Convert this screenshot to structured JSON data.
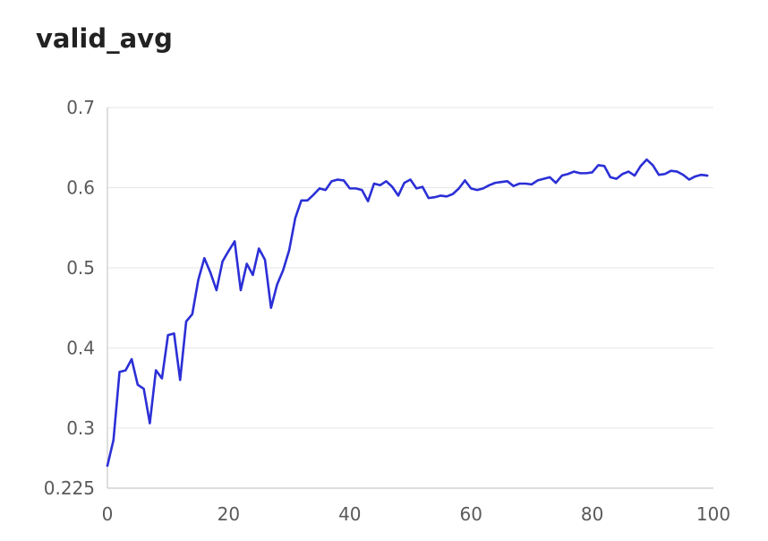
{
  "chart_data": {
    "type": "line",
    "title": "valid_avg",
    "xlabel": "",
    "ylabel": "",
    "xlim": [
      0,
      100
    ],
    "ylim": [
      0.225,
      0.7
    ],
    "x_ticks": [
      0,
      20,
      40,
      60,
      80,
      100
    ],
    "y_ticks": [
      0.225,
      0.3,
      0.4,
      0.5,
      0.6,
      0.7
    ],
    "grid": "horizontal",
    "legend": "none",
    "series": [
      {
        "color": "#2b2fd6",
        "x": [
          0,
          1,
          2,
          3,
          4,
          5,
          6,
          7,
          8,
          9,
          10,
          11,
          12,
          13,
          14,
          15,
          16,
          17,
          18,
          19,
          20,
          21,
          22,
          23,
          24,
          25,
          26,
          27,
          28,
          29,
          30,
          31,
          32,
          33,
          34,
          35,
          36,
          37,
          38,
          39,
          40,
          41,
          42,
          43,
          44,
          45,
          46,
          47,
          48,
          49,
          50,
          51,
          52,
          53,
          54,
          55,
          56,
          57,
          58,
          59,
          60,
          61,
          62,
          63,
          64,
          65,
          66,
          67,
          68,
          69,
          70,
          71,
          72,
          73,
          74,
          75,
          76,
          77,
          78,
          79,
          80,
          81,
          82,
          83,
          84,
          85,
          86,
          87,
          88,
          89,
          90,
          91,
          92,
          93,
          94,
          95,
          96,
          97,
          98,
          99
        ],
        "values": [
          0.253,
          0.285,
          0.37,
          0.372,
          0.386,
          0.354,
          0.349,
          0.306,
          0.372,
          0.362,
          0.416,
          0.418,
          0.36,
          0.433,
          0.442,
          0.485,
          0.512,
          0.494,
          0.472,
          0.508,
          0.521,
          0.533,
          0.472,
          0.505,
          0.491,
          0.524,
          0.51,
          0.45,
          0.479,
          0.497,
          0.522,
          0.562,
          0.584,
          0.584,
          0.591,
          0.599,
          0.597,
          0.608,
          0.61,
          0.609,
          0.599,
          0.599,
          0.597,
          0.583,
          0.605,
          0.603,
          0.608,
          0.601,
          0.59,
          0.606,
          0.61,
          0.599,
          0.601,
          0.587,
          0.588,
          0.59,
          0.589,
          0.592,
          0.599,
          0.609,
          0.599,
          0.597,
          0.599,
          0.603,
          0.606,
          0.607,
          0.608,
          0.602,
          0.605,
          0.605,
          0.604,
          0.609,
          0.611,
          0.613,
          0.606,
          0.615,
          0.617,
          0.62,
          0.618,
          0.618,
          0.619,
          0.628,
          0.627,
          0.613,
          0.611,
          0.617,
          0.62,
          0.615,
          0.627,
          0.635,
          0.628,
          0.616,
          0.617,
          0.621,
          0.62,
          0.616,
          0.61,
          0.614,
          0.616,
          0.615
        ]
      }
    ]
  }
}
